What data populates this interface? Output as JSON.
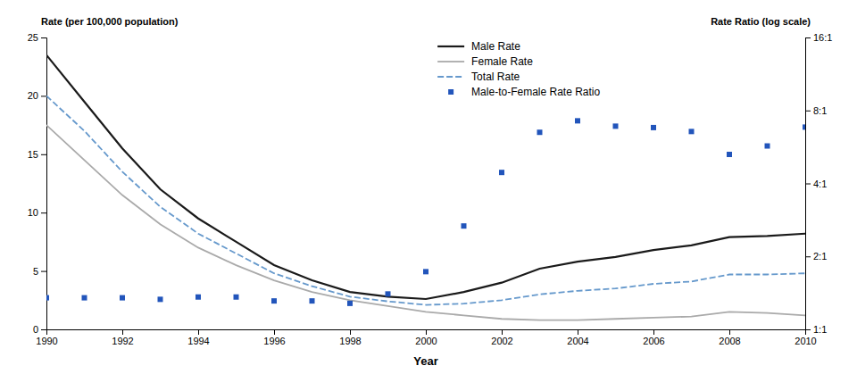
{
  "chart_data": {
    "type": "line",
    "x_label": "Year",
    "y_label": "Rate (per 100,000 population)",
    "y2_label": "Rate Ratio (log scale)",
    "x": [
      1990,
      1991,
      1992,
      1993,
      1994,
      1995,
      1996,
      1997,
      1998,
      1999,
      2000,
      2001,
      2002,
      2003,
      2004,
      2005,
      2006,
      2007,
      2008,
      2009,
      2010
    ],
    "xlim": [
      1990,
      2010
    ],
    "xticks": [
      1990,
      1992,
      1994,
      1996,
      1998,
      2000,
      2002,
      2004,
      2006,
      2008,
      2010
    ],
    "ylim": [
      0,
      25
    ],
    "yticks": [
      0,
      5,
      10,
      15,
      20,
      25
    ],
    "y2lim": [
      1,
      16
    ],
    "y2ticks": [
      {
        "value": 1,
        "label": "1:1"
      },
      {
        "value": 2,
        "label": "2:1"
      },
      {
        "value": 4,
        "label": "4:1"
      },
      {
        "value": 8,
        "label": "8:1"
      },
      {
        "value": 16,
        "label": "16:1"
      }
    ],
    "log": "y2",
    "grid": false,
    "legend": "top",
    "series": [
      {
        "name": "Male Rate",
        "color": "#1a1a1a",
        "line_style": "solid",
        "values": [
          23.5,
          19.5,
          15.5,
          12.0,
          9.5,
          7.5,
          5.5,
          4.2,
          3.2,
          2.8,
          2.6,
          3.2,
          4.0,
          5.2,
          5.8,
          6.2,
          6.8,
          7.2,
          7.9,
          8.0,
          8.2
        ]
      },
      {
        "name": "Female Rate",
        "color": "#aaaaaa",
        "line_style": "solid",
        "values": [
          17.5,
          14.5,
          11.5,
          9.0,
          7.0,
          5.5,
          4.2,
          3.2,
          2.5,
          2.0,
          1.5,
          1.2,
          0.9,
          0.8,
          0.8,
          0.9,
          1.0,
          1.1,
          1.5,
          1.4,
          1.2
        ]
      },
      {
        "name": "Total Rate",
        "color": "#6699cc",
        "line_style": "dashed",
        "values": [
          20.0,
          17.0,
          13.5,
          10.5,
          8.2,
          6.5,
          4.8,
          3.7,
          2.8,
          2.4,
          2.1,
          2.2,
          2.5,
          3.0,
          3.3,
          3.5,
          3.9,
          4.1,
          4.7,
          4.7,
          4.8
        ]
      },
      {
        "name": "Male-to-Female Rate Ratio",
        "color": "#2255bb",
        "type": "scatter",
        "marker": "square",
        "axis": "y2",
        "values": [
          1.35,
          1.35,
          1.35,
          1.33,
          1.36,
          1.36,
          1.31,
          1.31,
          1.28,
          1.4,
          1.73,
          2.67,
          4.44,
          6.5,
          7.25,
          6.89,
          6.8,
          6.55,
          5.27,
          5.71,
          6.83
        ]
      }
    ]
  }
}
